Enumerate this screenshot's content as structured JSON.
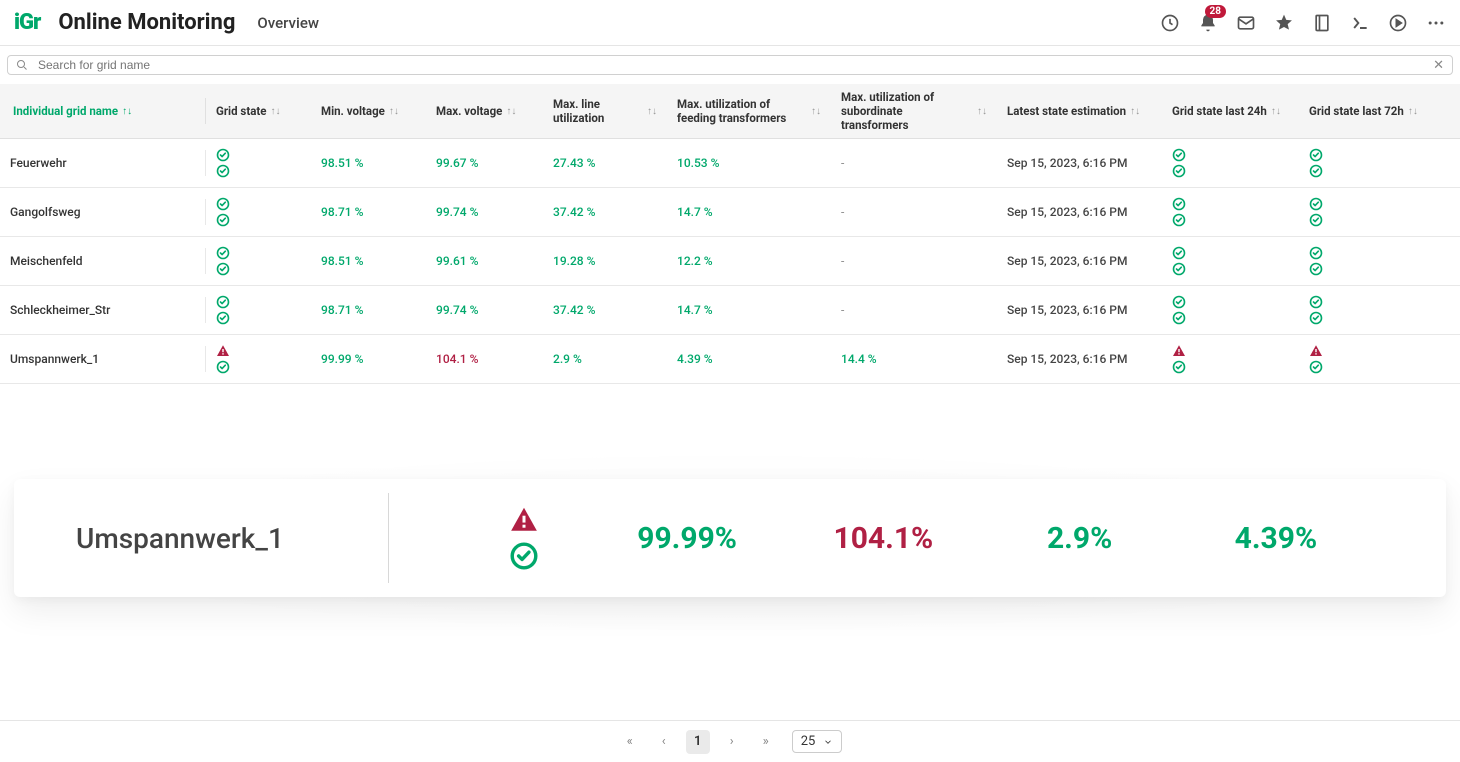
{
  "header": {
    "logo_text": "iGr",
    "app_title": "Online Monitoring",
    "nav_tab": "Overview",
    "badge_count": "28"
  },
  "search": {
    "placeholder": "Search for grid name"
  },
  "colors": {
    "accent_green": "#00a86b",
    "alert_red": "#b02044",
    "badge_bg": "#c0193a"
  },
  "columns": {
    "name": "Individual grid name",
    "state": "Grid state",
    "minv": "Min. voltage",
    "maxv": "Max. voltage",
    "maxline": "Max. line utilization",
    "maxfeed": "Max. utilization of feeding transformers",
    "maxsub": "Max. utilization of subordinate transformers",
    "latest": "Latest state estimation",
    "s24": "Grid state last 24h",
    "s72": "Grid state last 72h"
  },
  "rows": [
    {
      "name": "Feuerwehr",
      "state": [
        "ok",
        "ok"
      ],
      "minv": {
        "v": "98.51 %",
        "c": "green"
      },
      "maxv": {
        "v": "99.67 %",
        "c": "green"
      },
      "maxline": {
        "v": "27.43 %",
        "c": "green"
      },
      "maxfeed": {
        "v": "10.53 %",
        "c": "green"
      },
      "maxsub": {
        "v": "-",
        "c": "dash"
      },
      "latest": "Sep 15, 2023, 6:16 PM",
      "s24": [
        "ok",
        "ok"
      ],
      "s72": [
        "ok",
        "ok"
      ]
    },
    {
      "name": "Gangolfsweg",
      "state": [
        "ok",
        "ok"
      ],
      "minv": {
        "v": "98.71 %",
        "c": "green"
      },
      "maxv": {
        "v": "99.74 %",
        "c": "green"
      },
      "maxline": {
        "v": "37.42 %",
        "c": "green"
      },
      "maxfeed": {
        "v": "14.7 %",
        "c": "green"
      },
      "maxsub": {
        "v": "-",
        "c": "dash"
      },
      "latest": "Sep 15, 2023, 6:16 PM",
      "s24": [
        "ok",
        "ok"
      ],
      "s72": [
        "ok",
        "ok"
      ]
    },
    {
      "name": "Meischenfeld",
      "state": [
        "ok",
        "ok"
      ],
      "minv": {
        "v": "98.51 %",
        "c": "green"
      },
      "maxv": {
        "v": "99.61 %",
        "c": "green"
      },
      "maxline": {
        "v": "19.28 %",
        "c": "green"
      },
      "maxfeed": {
        "v": "12.2 %",
        "c": "green"
      },
      "maxsub": {
        "v": "-",
        "c": "dash"
      },
      "latest": "Sep 15, 2023, 6:16 PM",
      "s24": [
        "ok",
        "ok"
      ],
      "s72": [
        "ok",
        "ok"
      ]
    },
    {
      "name": "Schleckheimer_Str",
      "state": [
        "ok",
        "ok"
      ],
      "minv": {
        "v": "98.71 %",
        "c": "green"
      },
      "maxv": {
        "v": "99.74 %",
        "c": "green"
      },
      "maxline": {
        "v": "37.42 %",
        "c": "green"
      },
      "maxfeed": {
        "v": "14.7 %",
        "c": "green"
      },
      "maxsub": {
        "v": "-",
        "c": "dash"
      },
      "latest": "Sep 15, 2023, 6:16 PM",
      "s24": [
        "ok",
        "ok"
      ],
      "s72": [
        "ok",
        "ok"
      ]
    },
    {
      "name": "Umspannwerk_1",
      "state": [
        "warn",
        "ok"
      ],
      "minv": {
        "v": "99.99 %",
        "c": "green"
      },
      "maxv": {
        "v": "104.1 %",
        "c": "red"
      },
      "maxline": {
        "v": "2.9 %",
        "c": "green"
      },
      "maxfeed": {
        "v": "4.39 %",
        "c": "green"
      },
      "maxsub": {
        "v": "14.4 %",
        "c": "green"
      },
      "latest": "Sep 15, 2023, 6:16 PM",
      "s24": [
        "warn",
        "ok"
      ],
      "s72": [
        "warn",
        "ok"
      ]
    }
  ],
  "detail": {
    "name": "Umspannwerk_1",
    "status": [
      "warn",
      "ok"
    ],
    "metrics": [
      {
        "v": "99.99%",
        "c": "green"
      },
      {
        "v": "104.1%",
        "c": "red"
      },
      {
        "v": "2.9%",
        "c": "green"
      },
      {
        "v": "4.39%",
        "c": "green"
      }
    ]
  },
  "pagination": {
    "current": "1",
    "page_size": "25"
  }
}
